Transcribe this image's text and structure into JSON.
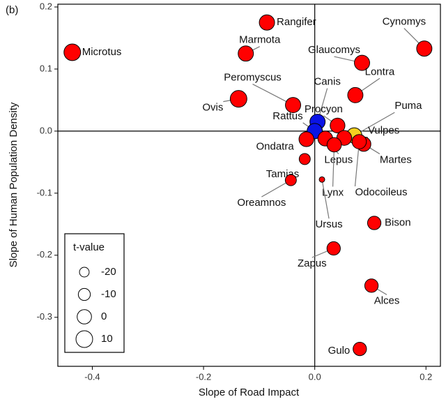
{
  "chart_data": {
    "type": "scatter",
    "panel_label": "(b)",
    "x_label": "Slope of Road Impact",
    "y_label": "Slope of Human Population Density",
    "xlim": [
      -0.462,
      0.226
    ],
    "ylim": [
      -0.379,
      0.2045
    ],
    "xticks": [
      -0.4,
      -0.2,
      {
        "value": 0,
        "label": "0.0"
      },
      0.2
    ],
    "yticks": [
      0.2,
      0.1,
      {
        "value": 0,
        "label": "0.0"
      },
      -0.1,
      -0.2,
      -0.3
    ],
    "reference_lines": {
      "x": 0,
      "y": 0
    },
    "points": [
      {
        "name": "Microtus",
        "x": -0.436,
        "y": 0.127,
        "t": 10,
        "color": "#ff0000"
      },
      {
        "name": "Rangifer",
        "x": -0.086,
        "y": 0.175,
        "t": 4,
        "color": "#ff0000"
      },
      {
        "name": "Marmota",
        "x": -0.124,
        "y": 0.125,
        "t": 4,
        "color": "#ff0000"
      },
      {
        "name": "Peromyscus",
        "x": -0.039,
        "y": 0.042,
        "t": 4,
        "color": "#ff0000"
      },
      {
        "name": "Ovis",
        "x": -0.137,
        "y": 0.052,
        "t": 10,
        "color": "#ff0000"
      },
      {
        "name": "Cynomys",
        "x": 0.197,
        "y": 0.133,
        "t": 4,
        "color": "#ff0000"
      },
      {
        "name": "Glaucomys",
        "x": 0.085,
        "y": 0.11,
        "t": 4,
        "color": "#ff0000"
      },
      {
        "name": "Lontra",
        "x": 0.073,
        "y": 0.058,
        "t": 4,
        "color": "#ff0000"
      },
      {
        "name": "Canis",
        "x": 0.005,
        "y": 0.015,
        "t": 4,
        "color": "#0a14e6"
      },
      {
        "name": "Procyon",
        "x": 0.041,
        "y": 0.009,
        "t": 2,
        "color": "#ff0000"
      },
      {
        "name": "Rattus",
        "x": 0.0,
        "y": 0.0,
        "t": 4,
        "color": "#0a14e6"
      },
      {
        "name": "Puma",
        "x": 0.071,
        "y": -0.007,
        "t": 4,
        "color": "#f5d020"
      },
      {
        "name": "Vulpes",
        "x": 0.053,
        "y": -0.011,
        "t": 2,
        "color": "#ff0000"
      },
      {
        "name": "Martes",
        "x": 0.088,
        "y": -0.021,
        "t": 0,
        "color": "#ff0000"
      },
      {
        "name": "Odocoileus",
        "x": 0.08,
        "y": -0.017,
        "t": 0,
        "color": "#ff0000"
      },
      {
        "name": "Ondatra",
        "x": -0.015,
        "y": -0.013,
        "t": 2,
        "color": "#ff0000"
      },
      {
        "name": "Lepus",
        "x": 0.019,
        "y": -0.012,
        "t": 2,
        "color": "#ff0000"
      },
      {
        "name": "Lynx",
        "x": 0.035,
        "y": -0.022,
        "t": 0,
        "color": "#ff0000"
      },
      {
        "name": "Ursus",
        "x": 0.013,
        "y": -0.078,
        "t": -38,
        "color": "#ff0000"
      },
      {
        "name": "Tamias",
        "x": -0.018,
        "y": -0.045,
        "t": -14,
        "color": "#ff0000"
      },
      {
        "name": "Oreamnos",
        "x": -0.043,
        "y": -0.079,
        "t": -14,
        "color": "#ff0000"
      },
      {
        "name": "Bison",
        "x": 0.107,
        "y": -0.148,
        "t": -4,
        "color": "#ff0000"
      },
      {
        "name": "Zapus",
        "x": 0.034,
        "y": -0.189,
        "t": -4,
        "color": "#ff0000"
      },
      {
        "name": "Alces",
        "x": 0.102,
        "y": -0.249,
        "t": -4,
        "color": "#ff0000"
      },
      {
        "name": "Gulo",
        "x": 0.081,
        "y": -0.351,
        "t": -4,
        "color": "#ff0000"
      }
    ],
    "size_legend": {
      "title": "t-value",
      "values": [
        -20,
        -10,
        0,
        10
      ]
    }
  }
}
